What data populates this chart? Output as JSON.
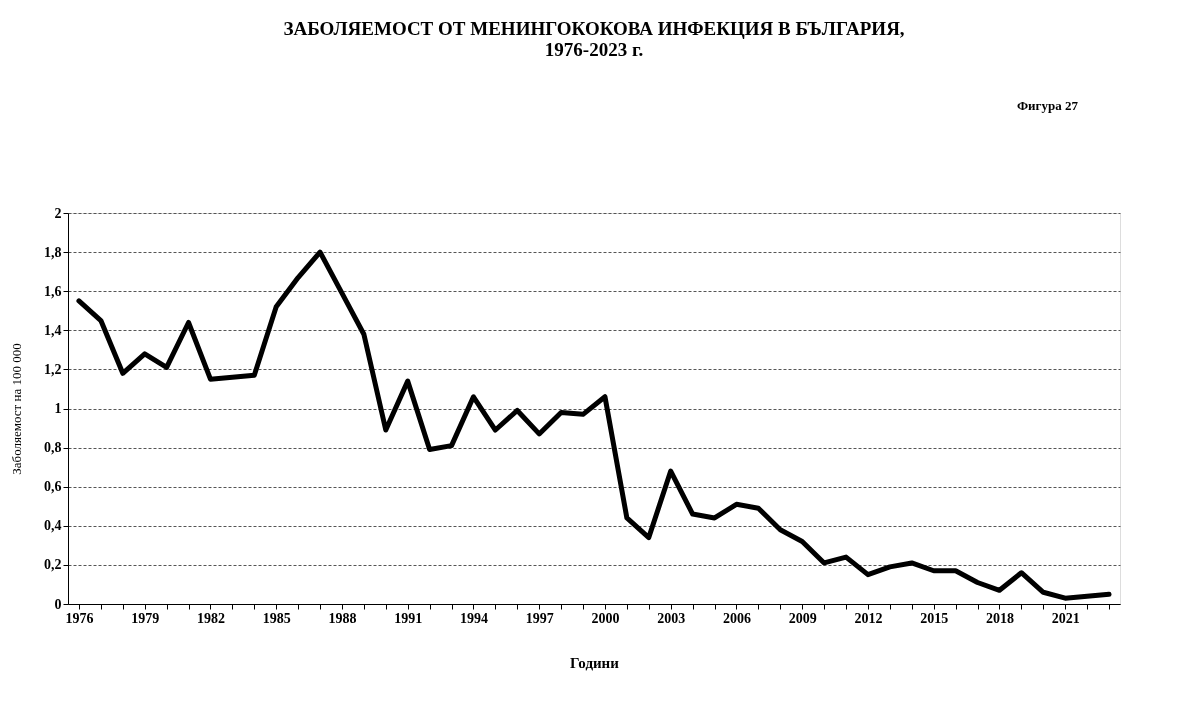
{
  "chart_data": {
    "type": "line",
    "title": [
      "ЗАБОЛЯЕМОСТ ОТ МЕНИНГОКОКОВА ИНФЕКЦИЯ В БЪЛГАРИЯ,",
      "1976-2023 г."
    ],
    "annotations": [
      "Фигура 27"
    ],
    "xlabel": "Години",
    "ylabel": "Заболяемост на 100 000",
    "categories": [
      "1976",
      null,
      null,
      "1979",
      null,
      null,
      "1982",
      null,
      null,
      "1985",
      null,
      null,
      "1988",
      null,
      null,
      "1991",
      null,
      null,
      "1994",
      null,
      null,
      "1997",
      null,
      null,
      "2000",
      null,
      null,
      "2003",
      null,
      null,
      "2006",
      null,
      null,
      "2009",
      null,
      null,
      "2012",
      null,
      null,
      "2015",
      null,
      null,
      "2018",
      null,
      null,
      "2021",
      null,
      null
    ],
    "series": [
      {
        "color": "#000000",
        "values": [
          1.55,
          1.45,
          1.18,
          1.28,
          1.21,
          1.44,
          1.15,
          1.16,
          1.17,
          1.52,
          1.67,
          1.8,
          1.59,
          1.38,
          0.89,
          1.14,
          0.79,
          0.81,
          1.06,
          0.89,
          0.99,
          0.87,
          0.98,
          0.97,
          1.06,
          0.44,
          0.34,
          0.68,
          0.46,
          0.44,
          0.51,
          0.49,
          0.38,
          0.32,
          0.21,
          0.24,
          0.15,
          0.19,
          0.21,
          0.17,
          0.17,
          0.11,
          0.07,
          0.16,
          0.06,
          0.03,
          0.04,
          0.05
        ]
      }
    ],
    "ylim": [
      0,
      2
    ],
    "yticks": [
      0,
      {
        "value": 0.2,
        "label": "0,2"
      },
      {
        "value": 0.4,
        "label": "0,4"
      },
      {
        "value": 0.6,
        "label": "0,6"
      },
      {
        "value": 0.8,
        "label": "0,8"
      },
      1,
      {
        "value": 1.2,
        "label": "1,2"
      },
      {
        "value": 1.4,
        "label": "1,4"
      },
      {
        "value": 1.6,
        "label": "1,6"
      },
      {
        "value": 1.8,
        "label": "1,8"
      },
      2
    ],
    "grid": "y",
    "marker": "none",
    "line_style": "solid"
  }
}
